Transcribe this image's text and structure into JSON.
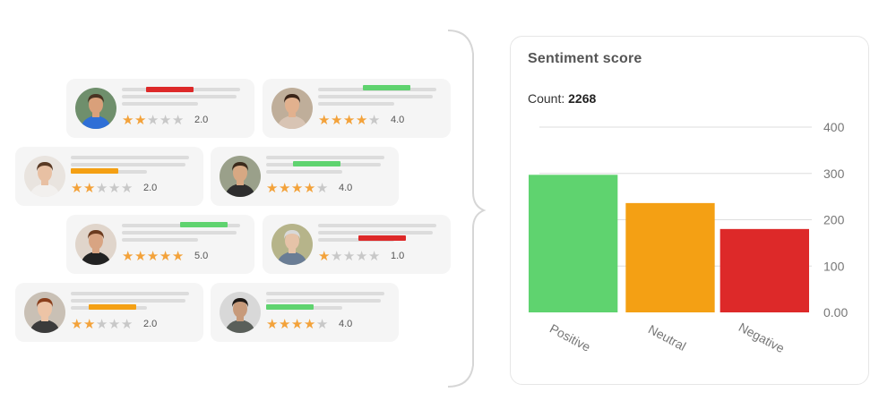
{
  "reviews": [
    {
      "rating": "2.0",
      "stars": 2,
      "sentiment": "negative",
      "avatar": "man-blue-shirt"
    },
    {
      "rating": "4.0",
      "stars": 4,
      "sentiment": "positive",
      "avatar": "woman-dark-hair-smiling"
    },
    {
      "rating": "2.0",
      "stars": 2,
      "sentiment": "neutral",
      "avatar": "woman-white-sweater"
    },
    {
      "rating": "4.0",
      "stars": 4,
      "sentiment": "positive",
      "avatar": "man-smiling-outdoors"
    },
    {
      "rating": "5.0",
      "stars": 5,
      "sentiment": "positive",
      "avatar": "woman-curly-hair"
    },
    {
      "rating": "1.0",
      "stars": 1,
      "sentiment": "negative",
      "avatar": "elderly-woman-glasses"
    },
    {
      "rating": "2.0",
      "stars": 2,
      "sentiment": "neutral",
      "avatar": "woman-red-hair"
    },
    {
      "rating": "4.0",
      "stars": 4,
      "sentiment": "positive",
      "avatar": "man-on-phone"
    }
  ],
  "colors": {
    "positive": "#5fd36f",
    "neutral": "#f4a014",
    "negative": "#dd2929",
    "star_on": "#f3a23a",
    "star_off": "#c8c8c8"
  },
  "panel": {
    "title": "Sentiment score",
    "count_label": "Count:",
    "count_value": "2268"
  },
  "chart_data": {
    "type": "bar",
    "title": "Sentiment score",
    "categories": [
      "Positive",
      "Neutral",
      "Negative"
    ],
    "values": [
      297,
      236,
      180
    ],
    "colors": [
      "#5fd36f",
      "#f4a014",
      "#dd2929"
    ],
    "ylim": [
      0,
      400
    ],
    "yticks": [
      0,
      100,
      200,
      300,
      400
    ],
    "ytick_labels": [
      "0.00",
      "100",
      "200",
      "300",
      "400"
    ],
    "y_axis_side": "right",
    "grid": true
  }
}
